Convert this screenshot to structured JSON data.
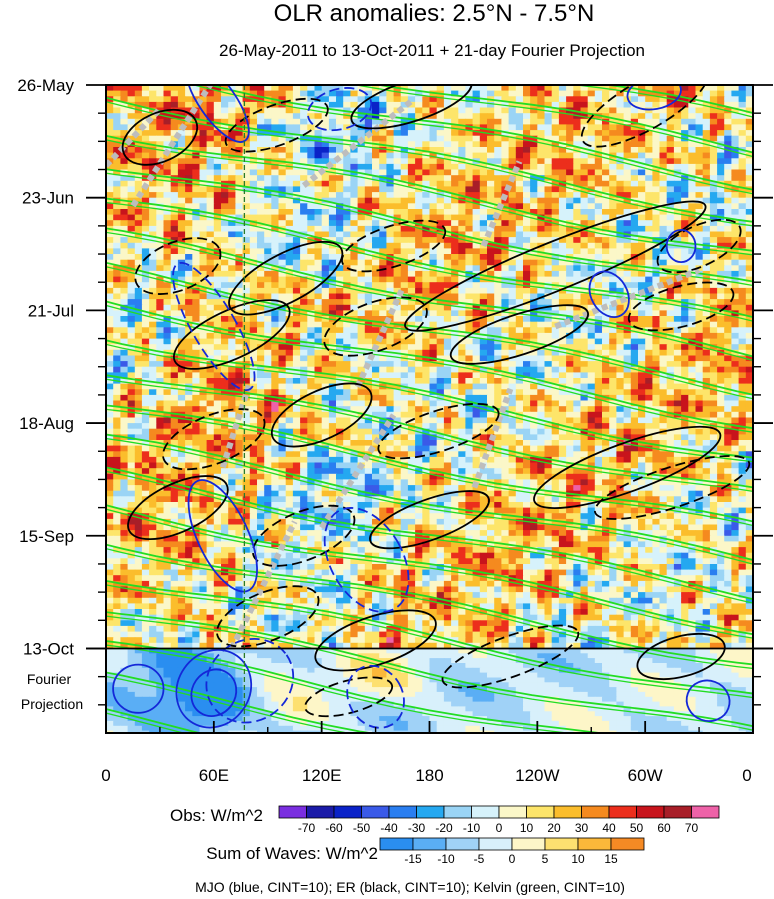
{
  "chart_data": {
    "type": "heatmap",
    "title": "OLR anomalies: 2.5°N - 7.5°N",
    "subtitle": "26-May-2011 to 13-Oct-2011 + 21-day Fourier Projection",
    "x_axis": {
      "label": "",
      "ticks": [
        "0",
        "60E",
        "120E",
        "180",
        "120W",
        "60W",
        "0"
      ],
      "tick_values_deg": [
        0,
        60,
        120,
        180,
        240,
        300,
        360
      ],
      "range": [
        0,
        360
      ]
    },
    "y_axis": {
      "label": "",
      "ticks": [
        "26-May",
        "23-Jun",
        "21-Jul",
        "18-Aug",
        "15-Sep",
        "13-Oct"
      ],
      "tick_values_day": [
        0,
        28,
        56,
        84,
        112,
        140
      ],
      "range_days": [
        0,
        161
      ],
      "projection_label_line1": "Fourier",
      "projection_label_line2": "Projection",
      "projection_start_day": 140,
      "projection_length_days": 21
    },
    "obs_colorbar": {
      "label": "Obs: W/m^2",
      "levels": [
        -70,
        -60,
        -50,
        -40,
        -30,
        -20,
        -10,
        0,
        10,
        20,
        30,
        40,
        50,
        60,
        70
      ],
      "colors": [
        "#7a2ee0",
        "#1b1ba8",
        "#0a22c8",
        "#3a5ae8",
        "#2a7ef0",
        "#25a8f0",
        "#9ad4f5",
        "#d6f2fb",
        "#fbf7c8",
        "#fde56a",
        "#fbbd2c",
        "#f58a1f",
        "#ec2e1c",
        "#c8141c",
        "#a81e28",
        "#ee62a8"
      ]
    },
    "waves_colorbar": {
      "label": "Sum of Waves: W/m^2",
      "levels": [
        -15,
        -10,
        -5,
        0,
        5,
        10,
        15
      ],
      "colors": [
        "#2a8ef0",
        "#5aaef5",
        "#a0d2f7",
        "#d8f0fb",
        "#fdf6c8",
        "#fde070",
        "#fbb83a",
        "#f58a24"
      ]
    },
    "footnote": "MJO (blue, CINT=10); ER (black, CINT=10); Kelvin (green, CINT=10)",
    "series": [
      {
        "name": "MJO",
        "color": "#1428d8",
        "contour_interval": 10
      },
      {
        "name": "ER",
        "color": "#000000",
        "contour_interval": 10
      },
      {
        "name": "Kelvin",
        "color": "#22dd22",
        "contour_interval": 10
      }
    ],
    "reference_line_lon": 77,
    "reference_line_color": "#2a7a2a"
  }
}
